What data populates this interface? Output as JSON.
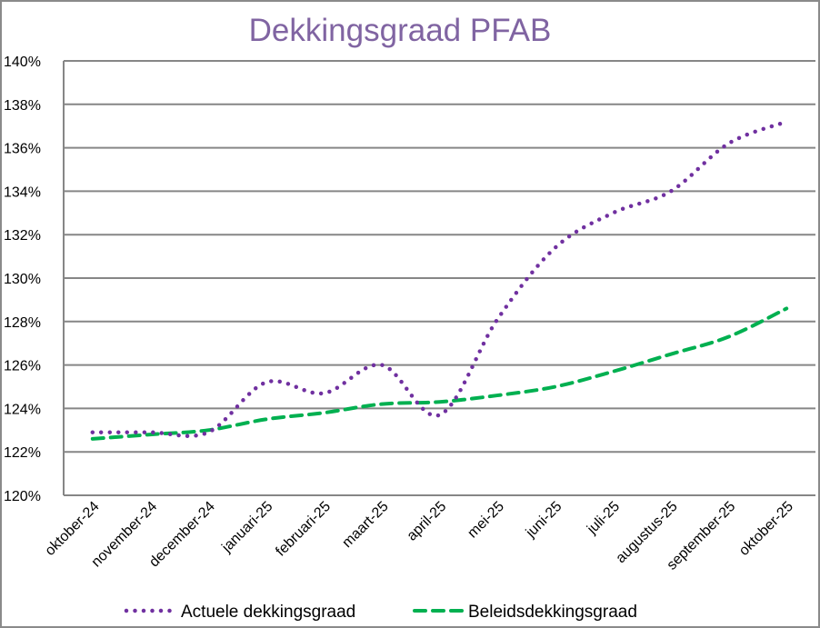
{
  "chart_data": {
    "type": "line",
    "title": "Dekkingsgraad  PFAB",
    "xlabel": "",
    "ylabel": "",
    "ylim": [
      120,
      140
    ],
    "yticks": [
      "120%",
      "122%",
      "124%",
      "126%",
      "128%",
      "130%",
      "132%",
      "134%",
      "136%",
      "138%",
      "140%"
    ],
    "grid": true,
    "legend_position": "bottom",
    "categories": [
      "oktober-24",
      "november-24",
      "december-24",
      "januari-25",
      "februari-25",
      "maart-25",
      "april-25",
      "mei-25",
      "juni-25",
      "juli-25",
      "augustus-25",
      "september-25",
      "oktober-25"
    ],
    "series": [
      {
        "name": "Actuele dekkingsgraad",
        "style": "dotted",
        "color": "#7030a0",
        "values": [
          122.9,
          122.9,
          122.9,
          125.2,
          124.7,
          126.0,
          123.7,
          128.1,
          131.4,
          133.0,
          134.0,
          136.2,
          137.2
        ]
      },
      {
        "name": "Beleidsdekkingsgraad",
        "style": "dashed",
        "color": "#00b050",
        "values": [
          122.6,
          122.8,
          123.0,
          123.5,
          123.8,
          124.2,
          124.3,
          124.6,
          125.0,
          125.7,
          126.5,
          127.3,
          128.6
        ]
      }
    ]
  },
  "colors": {
    "title": "#8064a2",
    "grid": "#868686",
    "frame": "#8a8a8a",
    "text": "#000000"
  }
}
